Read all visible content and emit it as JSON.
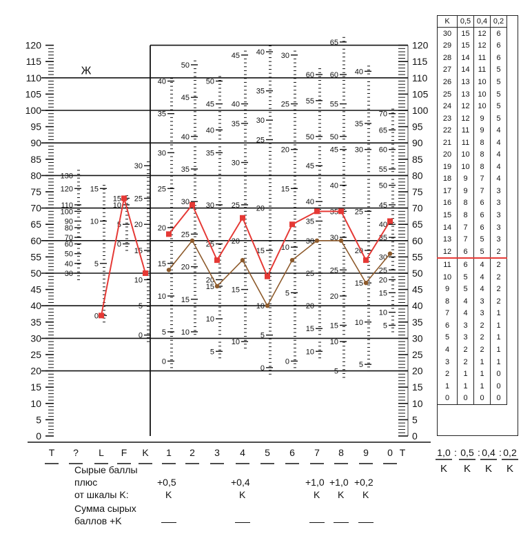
{
  "chart_data": {
    "type": "line",
    "title": "",
    "sex_label": "Ж",
    "ylim": [
      0,
      120
    ],
    "y_ticks": [
      0,
      5,
      10,
      15,
      20,
      25,
      30,
      35,
      40,
      45,
      50,
      55,
      60,
      65,
      70,
      75,
      80,
      85,
      90,
      95,
      100,
      105,
      110,
      115,
      120
    ],
    "categories": [
      "T",
      "?",
      "L",
      "F",
      "K",
      "1",
      "2",
      "3",
      "4",
      "5",
      "6",
      "7",
      "8",
      "9",
      "0"
    ],
    "series": [
      {
        "name": "",
        "color": "#e53935",
        "segments": [
          {
            "x": [
              "L",
              "F",
              "K"
            ],
            "values": [
              37,
              73,
              50
            ]
          },
          {
            "x": [
              "1",
              "2",
              "3",
              "4",
              "5",
              "6",
              "7",
              "8",
              "9",
              "0"
            ],
            "values": [
              62,
              71,
              54,
              67,
              49,
              65,
              69,
              69,
              54,
              66
            ]
          }
        ]
      },
      {
        "name": "",
        "color": "#8d5a2b",
        "segments": [
          {
            "x": [
              "1",
              "2",
              "3",
              "4",
              "5",
              "6",
              "7",
              "8",
              "9",
              "0"
            ],
            "values": [
              51,
              60,
              46,
              54,
              40,
              54,
              60,
              60,
              47,
              56
            ]
          }
        ]
      }
    ],
    "raw_scales": [
      {
        "col": "?",
        "ticks": [
          130,
          120,
          110,
          100,
          90,
          80,
          70,
          60,
          50,
          40,
          30
        ],
        "tvals": [
          80,
          76,
          71,
          69,
          66,
          64,
          61,
          59,
          56,
          53,
          50
        ]
      },
      {
        "col": "L",
        "ticks": [
          15,
          10,
          5,
          0
        ],
        "tvals": [
          76,
          66,
          53,
          37
        ]
      },
      {
        "col": "F",
        "ticks": [
          15,
          10,
          5,
          0
        ],
        "tvals": [
          73,
          71,
          65,
          59
        ]
      },
      {
        "col": "K",
        "ticks": [
          30,
          25,
          20,
          15,
          10,
          5,
          0
        ],
        "tvals": [
          83,
          73,
          65,
          57,
          48,
          40,
          31
        ]
      },
      {
        "col": "1",
        "ticks": [
          40,
          35,
          30,
          25,
          20,
          15,
          10,
          5,
          0
        ],
        "tvals": [
          109,
          99,
          87,
          76,
          64,
          53,
          43,
          32,
          23
        ]
      },
      {
        "col": "2",
        "ticks": [
          50,
          45,
          40,
          35,
          30,
          25,
          20,
          15,
          10
        ],
        "tvals": [
          114,
          104,
          92,
          82,
          72,
          62,
          52,
          42,
          32
        ]
      },
      {
        "col": "3",
        "ticks": [
          50,
          45,
          40,
          35,
          30,
          25,
          20,
          15,
          10,
          5
        ],
        "tvals": [
          109,
          102,
          94,
          87,
          71,
          59,
          48,
          46,
          36,
          26
        ]
      },
      {
        "col": "4",
        "ticks": [
          45,
          40,
          35,
          30,
          25,
          20,
          15,
          10
        ],
        "tvals": [
          117,
          102,
          96,
          84,
          71,
          60,
          45,
          29
        ]
      },
      {
        "col": "5",
        "ticks": [
          40,
          35,
          30,
          25,
          20,
          15,
          10,
          5,
          0
        ],
        "tvals": [
          118,
          106,
          97,
          91,
          70,
          57,
          40,
          31,
          21
        ]
      },
      {
        "col": "6",
        "ticks": [
          30,
          25,
          20,
          15,
          10,
          5,
          0
        ],
        "tvals": [
          117,
          102,
          88,
          76,
          58,
          44,
          23
        ]
      },
      {
        "col": "7",
        "ticks": [
          60,
          55,
          50,
          45,
          40,
          35,
          30,
          25,
          20,
          15,
          10
        ],
        "tvals": [
          111,
          103,
          92,
          83,
          72,
          66,
          60,
          50,
          40,
          33,
          26
        ]
      },
      {
        "col": "8",
        "ticks": [
          65,
          60,
          55,
          50,
          45,
          40,
          35,
          30,
          25,
          20,
          15,
          10,
          5
        ],
        "tvals": [
          121,
          111,
          102,
          92,
          88,
          77,
          69,
          61,
          51,
          43,
          34,
          29,
          20
        ]
      },
      {
        "col": "9",
        "ticks": [
          40,
          35,
          30,
          25,
          20,
          15,
          10,
          5
        ],
        "tvals": [
          112,
          96,
          88,
          69,
          57,
          47,
          35,
          22
        ]
      },
      {
        "col": "0",
        "ticks": [
          70,
          65,
          60,
          55,
          50,
          45,
          40,
          35,
          30,
          25,
          20,
          15,
          10,
          5
        ],
        "tvals": [
          99,
          94,
          88,
          82,
          77,
          71,
          65,
          61,
          55,
          51,
          48,
          44,
          38,
          34
        ]
      }
    ]
  },
  "x_axis_labels": [
    "T",
    "?",
    "L",
    "F",
    "K",
    "1",
    "2",
    "3",
    "4",
    "5",
    "6",
    "7",
    "8",
    "9",
    "0",
    "T"
  ],
  "bottom_text": {
    "raw_scores": "Сырые баллы",
    "plus": "плюс",
    "from_k": "от шкалы K:",
    "sum_raw": "Сумма сырых",
    "points_k": "баллов +K",
    "k_add": [
      {
        "col": "1",
        "label": "+0,5"
      },
      {
        "col": "4",
        "label": "+0,4"
      },
      {
        "col": "7",
        "label": "+1,0"
      },
      {
        "col": "8",
        "label": "+1,0"
      },
      {
        "col": "9",
        "label": "+0,2"
      }
    ],
    "k_letter": "K"
  },
  "k_table": {
    "header": [
      "K",
      "0,5",
      "0,4",
      "0,2"
    ],
    "rows": [
      [
        "30",
        "15",
        "12",
        "6"
      ],
      [
        "29",
        "15",
        "12",
        "6"
      ],
      [
        "28",
        "14",
        "11",
        "6"
      ],
      [
        "27",
        "14",
        "11",
        "5"
      ],
      [
        "26",
        "13",
        "10",
        "5"
      ],
      [
        "25",
        "13",
        "10",
        "5"
      ],
      [
        "24",
        "12",
        "10",
        "5"
      ],
      [
        "23",
        "12",
        "9",
        "5"
      ],
      [
        "22",
        "11",
        "9",
        "4"
      ],
      [
        "21",
        "11",
        "8",
        "4"
      ],
      [
        "20",
        "10",
        "8",
        "4"
      ],
      [
        "19",
        "10",
        "8",
        "4"
      ],
      [
        "18",
        "9",
        "7",
        "4"
      ],
      [
        "17",
        "9",
        "7",
        "3"
      ],
      [
        "16",
        "8",
        "6",
        "3"
      ],
      [
        "15",
        "8",
        "6",
        "3"
      ],
      [
        "14",
        "7",
        "6",
        "3"
      ],
      [
        "13",
        "7",
        "5",
        "3"
      ],
      [
        "12",
        "6",
        "5",
        "2"
      ],
      [
        "11",
        "6",
        "4",
        "2"
      ],
      [
        "10",
        "5",
        "4",
        "2"
      ],
      [
        "9",
        "5",
        "4",
        "2"
      ],
      [
        "8",
        "4",
        "3",
        "2"
      ],
      [
        "7",
        "4",
        "3",
        "1"
      ],
      [
        "6",
        "3",
        "2",
        "1"
      ],
      [
        "5",
        "3",
        "2",
        "1"
      ],
      [
        "4",
        "2",
        "2",
        "1"
      ],
      [
        "3",
        "2",
        "1",
        "1"
      ],
      [
        "2",
        "1",
        "1",
        "0"
      ],
      [
        "1",
        "1",
        "1",
        "0"
      ],
      [
        "0",
        "0",
        "0",
        "0"
      ]
    ],
    "footer_ratio": [
      "1,0",
      "0,5",
      "0,4",
      "0,2"
    ],
    "footer_k": [
      "K",
      "K",
      "K",
      "K"
    ]
  }
}
